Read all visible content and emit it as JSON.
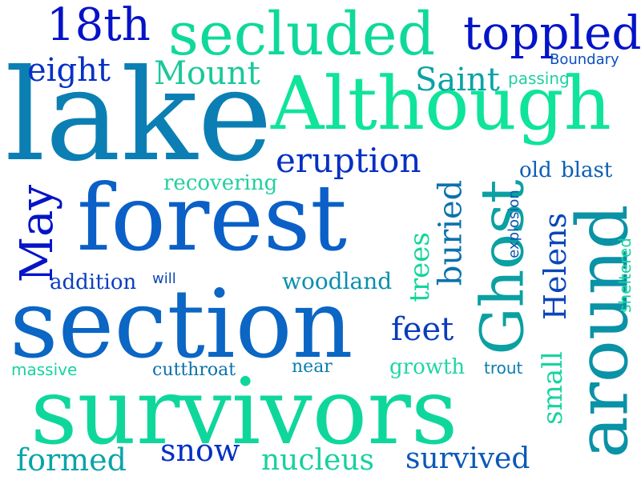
{
  "words": [
    {
      "text": "lake",
      "color": "#0b7fb4"
    },
    {
      "text": "Although",
      "color": "#0fe49a"
    },
    {
      "text": "forest",
      "color": "#0b60c8"
    },
    {
      "text": "section",
      "color": "#0b66c4"
    },
    {
      "text": "survivors",
      "color": "#0fd79c"
    },
    {
      "text": "around",
      "color": "#0a92a6"
    },
    {
      "text": "Ghost",
      "color": "#0ba0a2"
    },
    {
      "text": "secluded",
      "color": "#0fd99a"
    },
    {
      "text": "toppled",
      "color": "#0414c8"
    },
    {
      "text": "18th",
      "color": "#0412c8"
    },
    {
      "text": "eight",
      "color": "#0530c6"
    },
    {
      "text": "Mount",
      "color": "#1ac89a"
    },
    {
      "text": "Saint",
      "color": "#0aa2a6"
    },
    {
      "text": "Boundary",
      "color": "#0b4fbf"
    },
    {
      "text": "passing",
      "color": "#1fd0a2"
    },
    {
      "text": "eruption",
      "color": "#0530c2"
    },
    {
      "text": "recovering",
      "color": "#1fd09e"
    },
    {
      "text": "old",
      "color": "#0a5fb5"
    },
    {
      "text": "blast",
      "color": "#0a5fb5"
    },
    {
      "text": "May",
      "color": "#0414c6"
    },
    {
      "text": "buried",
      "color": "#0a72ad"
    },
    {
      "text": "trees",
      "color": "#12d69a"
    },
    {
      "text": "Helens",
      "color": "#0a46bb"
    },
    {
      "text": "explosion",
      "color": "#0a56b2"
    },
    {
      "text": "sheltered",
      "color": "#18d49c"
    },
    {
      "text": "addition",
      "color": "#0a3ec1"
    },
    {
      "text": "will",
      "color": "#0a46b6"
    },
    {
      "text": "woodland",
      "color": "#0a8fad"
    },
    {
      "text": "feet",
      "color": "#0a3cbc"
    },
    {
      "text": "small",
      "color": "#18d4a0"
    },
    {
      "text": "massive",
      "color": "#18d2a0"
    },
    {
      "text": "cutthroat",
      "color": "#0a70ac"
    },
    {
      "text": "near",
      "color": "#0a7fae"
    },
    {
      "text": "growth",
      "color": "#1fd6a2"
    },
    {
      "text": "trout",
      "color": "#0a7eae"
    },
    {
      "text": "formed",
      "color": "#0aa4a8"
    },
    {
      "text": "snow",
      "color": "#0530c4"
    },
    {
      "text": "nucleus",
      "color": "#18d0a0"
    },
    {
      "text": "survived",
      "color": "#0a58b8"
    }
  ]
}
